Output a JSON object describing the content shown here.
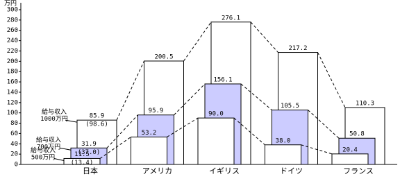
{
  "chart_data": {
    "type": "bar",
    "y_unit": "万円",
    "categories": [
      "日本",
      "アメリカ",
      "イギリス",
      "ドイツ",
      "フランス"
    ],
    "series": [
      {
        "name": "給与収入 1000万円",
        "color": "#ffffff",
        "values": [
          85.9,
          200.5,
          276.1,
          217.2,
          110.3
        ]
      },
      {
        "name": "給与収入 700万円",
        "color": "#ccccff",
        "values": [
          31.9,
          95.9,
          156.1,
          105.5,
          50.8
        ]
      },
      {
        "name": "給与収入 500万円",
        "color": "#ffffff",
        "values": [
          11.5,
          53.2,
          90.0,
          38.0,
          20.4
        ],
        "value_labels": [
          "11.5",
          "53.2",
          "90.0",
          "38.0",
          "20.4"
        ]
      }
    ],
    "annotations": [
      "(98.6)",
      "(37.0)",
      "(13.4)"
    ],
    "ylim": [
      0,
      300
    ],
    "yticks": [
      0,
      20,
      40,
      60,
      80,
      100,
      120,
      140,
      160,
      180,
      200,
      220,
      240,
      260,
      280,
      300
    ]
  }
}
